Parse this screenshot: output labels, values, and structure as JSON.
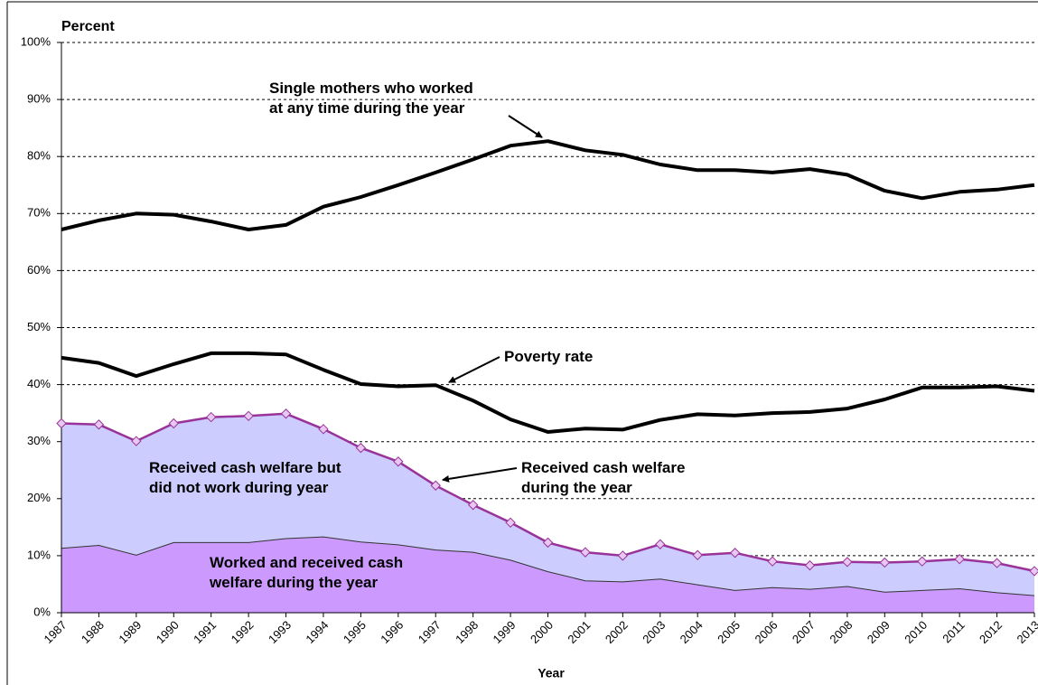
{
  "chart_data": {
    "type": "line",
    "y_axis_label": "Percent",
    "x_axis_label": "Year",
    "categories": [
      "1987",
      "1988",
      "1989",
      "1990",
      "1991",
      "1992",
      "1993",
      "1994",
      "1995",
      "1996",
      "1997",
      "1998",
      "1999",
      "2000",
      "2001",
      "2002",
      "2003",
      "2004",
      "2005",
      "2006",
      "2007",
      "2008",
      "2009",
      "2010",
      "2011",
      "2012",
      "2013"
    ],
    "ylim": [
      0,
      100
    ],
    "yticks": [
      {
        "value": 0,
        "label": "0%"
      },
      {
        "value": 10,
        "label": "10%"
      },
      {
        "value": 20,
        "label": "20%"
      },
      {
        "value": 30,
        "label": "30%"
      },
      {
        "value": 40,
        "label": "40%"
      },
      {
        "value": 50,
        "label": "50%"
      },
      {
        "value": 60,
        "label": "60%"
      },
      {
        "value": 70,
        "label": "70%"
      },
      {
        "value": 80,
        "label": "80%"
      },
      {
        "value": 90,
        "label": "90%"
      },
      {
        "value": 100,
        "label": "100%"
      }
    ],
    "grid": true,
    "series": [
      {
        "name": "Single mothers who worked\nat any time during the year",
        "type": "line",
        "color": "#000000",
        "values": [
          67.2,
          68.8,
          70.0,
          69.8,
          68.6,
          67.2,
          68.0,
          71.2,
          72.9,
          75.0,
          77.2,
          79.5,
          81.9,
          82.7,
          81.1,
          80.3,
          78.6,
          77.6,
          77.6,
          77.2,
          77.8,
          76.8,
          74.0,
          72.7,
          73.8,
          74.2,
          75.0
        ]
      },
      {
        "name": "Poverty rate",
        "type": "line",
        "color": "#000000",
        "values": [
          44.7,
          43.8,
          41.5,
          43.6,
          45.5,
          45.5,
          45.3,
          42.6,
          40.1,
          39.7,
          39.9,
          37.2,
          33.9,
          31.7,
          32.3,
          32.1,
          33.8,
          34.8,
          34.6,
          35.0,
          35.2,
          35.8,
          37.4,
          39.5,
          39.5,
          39.7,
          38.9
        ]
      },
      {
        "name": "Received cash welfare\nduring the year",
        "type": "marker_line",
        "color": "#993399",
        "fill_below": {
          "name": "Received cash welfare but\ndid not work during year",
          "color": "#ccccff"
        },
        "values": [
          33.2,
          33.0,
          30.1,
          33.2,
          34.3,
          34.5,
          34.9,
          32.2,
          28.9,
          26.5,
          22.3,
          18.9,
          15.8,
          12.3,
          10.6,
          10.0,
          12.0,
          10.1,
          10.5,
          9.0,
          8.3,
          8.9,
          8.8,
          9.0,
          9.4,
          8.7,
          7.3
        ]
      },
      {
        "name": "Worked and received cash\nwelfare during the year",
        "type": "area",
        "color": "#cc99ff",
        "values": [
          11.3,
          11.8,
          10.1,
          12.3,
          12.3,
          12.3,
          13.0,
          13.3,
          12.4,
          11.9,
          11.0,
          10.6,
          9.2,
          7.2,
          5.6,
          5.4,
          5.9,
          4.9,
          3.9,
          4.4,
          4.1,
          4.6,
          3.6,
          3.9,
          4.2,
          3.5,
          3.0
        ]
      }
    ]
  }
}
